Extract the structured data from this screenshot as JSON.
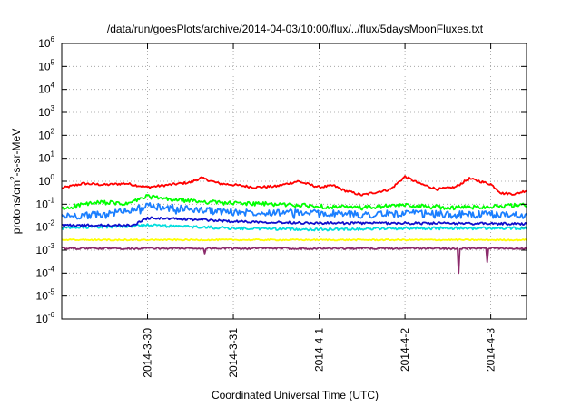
{
  "chart_data": {
    "type": "line",
    "title": "/data/run/goesPlots/archive/2014-04-03/10:00/flux/../flux/5daysMoonFluxes.txt",
    "xlabel": "Coordinated Universal Time (UTC)",
    "ylabel": {
      "main": "protons/cm",
      "sup": "2",
      "rest": "-s-sr-MeV"
    },
    "y_scale": "log",
    "ylim_exp": [
      -6,
      6
    ],
    "y_ticks": [
      {
        "base": "10",
        "exp": "-6"
      },
      {
        "base": "10",
        "exp": "-5"
      },
      {
        "base": "10",
        "exp": "-4"
      },
      {
        "base": "10",
        "exp": "-3"
      },
      {
        "base": "10",
        "exp": "-2"
      },
      {
        "base": "10",
        "exp": "-1"
      },
      {
        "base": "10",
        "exp": "0"
      },
      {
        "base": "10",
        "exp": "1"
      },
      {
        "base": "10",
        "exp": "2"
      },
      {
        "base": "10",
        "exp": "3"
      },
      {
        "base": "10",
        "exp": "4"
      },
      {
        "base": "10",
        "exp": "5"
      },
      {
        "base": "10",
        "exp": "6"
      }
    ],
    "x_range": [
      "2014-03-29 00:00",
      "2014-04-03 10:00"
    ],
    "x_ticks": [
      {
        "label": "2014-3-30",
        "t": "2014-03-30 00:00"
      },
      {
        "label": "2014-3-31",
        "t": "2014-03-31 00:00"
      },
      {
        "label": "2014-4-1",
        "t": "2014-04-01 00:00"
      },
      {
        "label": "2014-4-2",
        "t": "2014-04-02 00:00"
      },
      {
        "label": "2014-4-3",
        "t": "2014-04-03 00:00"
      }
    ],
    "grid": true,
    "legend": "none",
    "series": [
      {
        "color": "#ff0000",
        "noise": 0.05,
        "dips": [],
        "points": [
          [
            "2014-03-29 00:00",
            0.5
          ],
          [
            "2014-03-29 06:00",
            0.8
          ],
          [
            "2014-03-29 12:00",
            0.7
          ],
          [
            "2014-03-29 18:00",
            0.8
          ],
          [
            "2014-03-30 00:00",
            0.55
          ],
          [
            "2014-03-30 06:00",
            0.7
          ],
          [
            "2014-03-30 12:00",
            0.9
          ],
          [
            "2014-03-30 15:00",
            1.4
          ],
          [
            "2014-03-30 20:00",
            0.8
          ],
          [
            "2014-03-31 00:00",
            0.7
          ],
          [
            "2014-03-31 06:00",
            0.55
          ],
          [
            "2014-03-31 12:00",
            0.6
          ],
          [
            "2014-03-31 18:00",
            1.0
          ],
          [
            "2014-04-01 00:00",
            0.55
          ],
          [
            "2014-04-01 04:00",
            0.65
          ],
          [
            "2014-04-01 07:00",
            0.4
          ],
          [
            "2014-04-01 12:00",
            0.25
          ],
          [
            "2014-04-01 20:00",
            0.45
          ],
          [
            "2014-04-02 00:00",
            1.6
          ],
          [
            "2014-04-02 04:00",
            0.8
          ],
          [
            "2014-04-02 09:00",
            0.45
          ],
          [
            "2014-04-02 14:00",
            0.55
          ],
          [
            "2014-04-02 18:00",
            1.3
          ],
          [
            "2014-04-03 00:00",
            0.75
          ],
          [
            "2014-04-03 03:00",
            0.3
          ],
          [
            "2014-04-03 07:00",
            0.28
          ],
          [
            "2014-04-03 10:00",
            0.4
          ]
        ]
      },
      {
        "color": "#00ff00",
        "noise": 0.09,
        "dips": [],
        "points": [
          [
            "2014-03-29 00:00",
            0.06
          ],
          [
            "2014-03-29 06:00",
            0.1
          ],
          [
            "2014-03-29 12:00",
            0.12
          ],
          [
            "2014-03-29 18:00",
            0.1
          ],
          [
            "2014-03-30 00:00",
            0.22
          ],
          [
            "2014-03-30 06:00",
            0.16
          ],
          [
            "2014-03-30 12:00",
            0.14
          ],
          [
            "2014-03-31 00:00",
            0.11
          ],
          [
            "2014-03-31 12:00",
            0.1
          ],
          [
            "2014-04-01 00:00",
            0.08
          ],
          [
            "2014-04-01 12:00",
            0.07
          ],
          [
            "2014-04-02 00:00",
            0.09
          ],
          [
            "2014-04-02 12:00",
            0.07
          ],
          [
            "2014-04-03 00:00",
            0.08
          ],
          [
            "2014-04-03 10:00",
            0.09
          ]
        ]
      },
      {
        "color": "#1b7fff",
        "noise": 0.16,
        "dips": [
          [
            "2014-03-29 22:00",
            0.7
          ],
          [
            "2014-03-30 08:00",
            0.5
          ],
          [
            "2014-03-31 17:00",
            0.5
          ],
          [
            "2014-04-01 23:00",
            0.6
          ],
          [
            "2014-04-02 21:00",
            0.7
          ]
        ],
        "points": [
          [
            "2014-03-29 00:00",
            0.03
          ],
          [
            "2014-03-29 12:00",
            0.035
          ],
          [
            "2014-03-30 00:00",
            0.08
          ],
          [
            "2014-03-30 12:00",
            0.06
          ],
          [
            "2014-03-31 00:00",
            0.045
          ],
          [
            "2014-03-31 12:00",
            0.045
          ],
          [
            "2014-04-01 00:00",
            0.04
          ],
          [
            "2014-04-01 12:00",
            0.035
          ],
          [
            "2014-04-02 00:00",
            0.04
          ],
          [
            "2014-04-02 12:00",
            0.035
          ],
          [
            "2014-04-03 00:00",
            0.035
          ],
          [
            "2014-04-03 10:00",
            0.035
          ]
        ]
      },
      {
        "color": "#00dddd",
        "noise": 0.06,
        "dips": [],
        "points": [
          [
            "2014-03-29 00:00",
            0.009
          ],
          [
            "2014-03-30 00:00",
            0.012
          ],
          [
            "2014-03-31 00:00",
            0.009
          ],
          [
            "2014-04-01 00:00",
            0.008
          ],
          [
            "2014-04-02 00:00",
            0.009
          ],
          [
            "2014-04-03 10:00",
            0.009
          ]
        ]
      },
      {
        "color": "#1010cc",
        "noise": 0.05,
        "dips": [],
        "points": [
          [
            "2014-03-29 00:00",
            0.012
          ],
          [
            "2014-03-29 20:00",
            0.012
          ],
          [
            "2014-03-30 00:00",
            0.025
          ],
          [
            "2014-03-30 12:00",
            0.022
          ],
          [
            "2014-03-31 00:00",
            0.018
          ],
          [
            "2014-04-01 00:00",
            0.015
          ],
          [
            "2014-04-02 00:00",
            0.015
          ],
          [
            "2014-04-03 10:00",
            0.014
          ]
        ]
      },
      {
        "color": "#ffff00",
        "noise": 0.03,
        "dips": [
          [
            "2014-04-02 21:00",
            0.55
          ]
        ],
        "points": [
          [
            "2014-03-29 00:00",
            0.0028
          ],
          [
            "2014-04-03 10:00",
            0.0028
          ]
        ]
      },
      {
        "color": "#8b2a6b",
        "noise": 0.04,
        "dips": [
          [
            "2014-04-02 15:00",
            0.0001
          ],
          [
            "2014-04-02 23:00",
            0.0003
          ],
          [
            "2014-03-30 16:00",
            0.0007
          ]
        ],
        "points": [
          [
            "2014-03-29 00:00",
            0.0012
          ],
          [
            "2014-04-03 10:00",
            0.0012
          ]
        ]
      }
    ]
  }
}
